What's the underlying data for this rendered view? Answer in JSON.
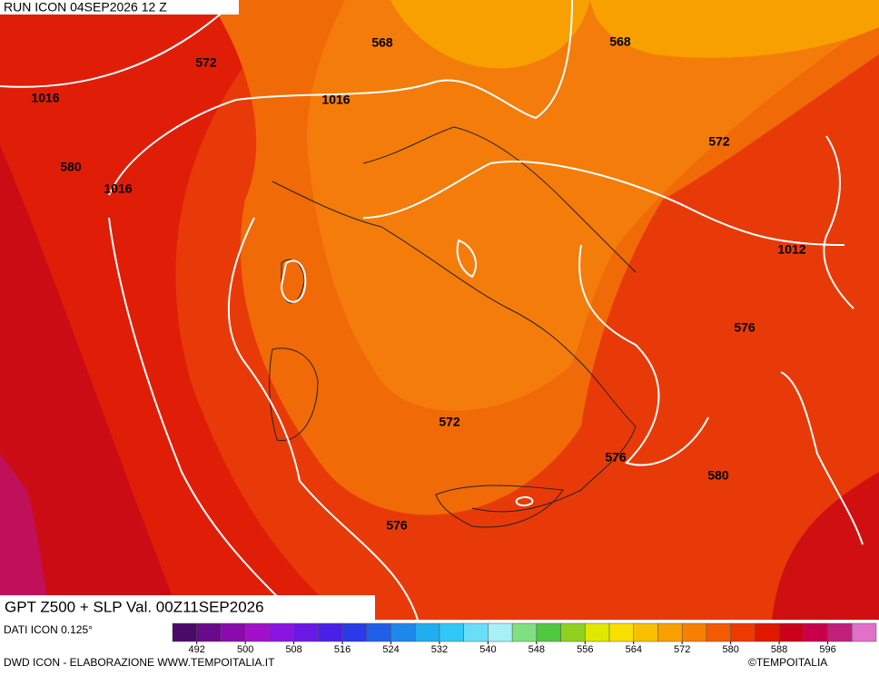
{
  "header": {
    "run": "RUN ICON 04SEP2026 12 Z"
  },
  "map": {
    "title": "GPT Z500 + SLP Val. 00Z11SEP2026",
    "contour_labels": [
      "568",
      "568",
      "572",
      "1016",
      "1016",
      "572",
      "580",
      "1016",
      "1012",
      "576",
      "572",
      "576",
      "580",
      "576"
    ]
  },
  "colorbar": {
    "label": "DATI ICON 0.125°",
    "lim": [
      488,
      604
    ],
    "ticks": [
      492,
      500,
      508,
      516,
      524,
      532,
      540,
      548,
      556,
      564,
      572,
      580,
      588,
      596
    ],
    "colors": [
      "#4a0a6a",
      "#6a0a8a",
      "#8a0aaa",
      "#a010c8",
      "#8a14e0",
      "#6a18e6",
      "#4a20e8",
      "#2a3ae8",
      "#2060e8",
      "#1e88ea",
      "#20aef0",
      "#30c8f6",
      "#6adef8",
      "#a8f0f8",
      "#80e080",
      "#50c840",
      "#90d020",
      "#e0e800",
      "#f8e000",
      "#f8c000",
      "#f8a000",
      "#f88000",
      "#f45a00",
      "#ec3a00",
      "#e01800",
      "#cc0018",
      "#c8004a",
      "#c0207a",
      "#e070c8"
    ]
  },
  "footer": {
    "source": "DWD ICON - ELABORAZIONE WWW.TEMPOITALIA.IT",
    "copyright": "©TEMPOITALIA"
  }
}
